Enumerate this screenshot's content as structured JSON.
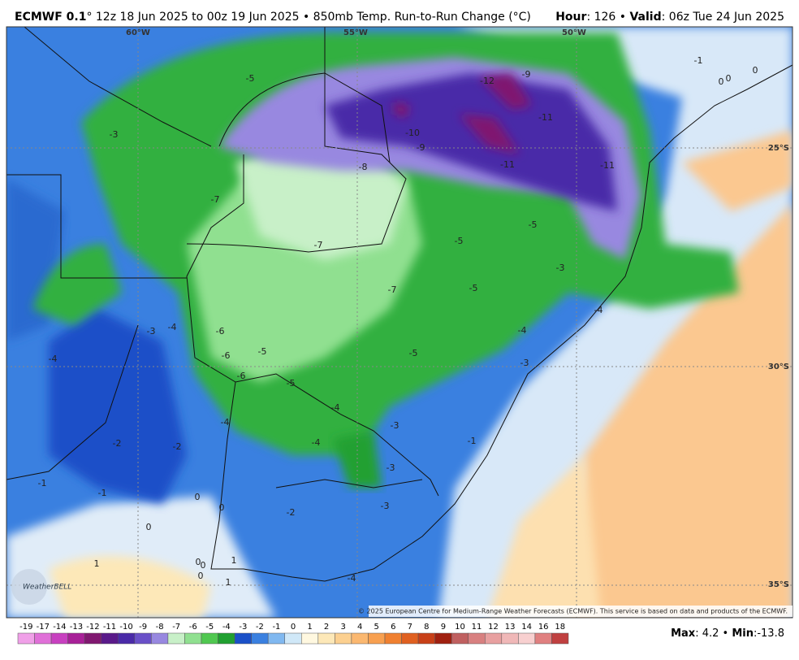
{
  "header": {
    "model": "ECMWF 0.1",
    "description": "° 12z 18 Jun 2025 to 00z 19 Jun 2025 • 850mb Temp. Run-to-Run Change (°C)",
    "hour_label": "Hour",
    "hour_rest": ": 126 • ",
    "valid_label": "Valid",
    "valid_rest": ": 06z Tue 24 Jun 2025"
  },
  "map": {
    "longitudes": [
      "60°W",
      "55°W",
      "50°W"
    ],
    "latitudes": [
      "25°S",
      "30°S",
      "35°S"
    ],
    "contour_labels": [
      "-1",
      "0",
      "0",
      "0",
      "-12",
      "-9",
      "-5",
      "-3",
      "-10",
      "-9",
      "-11",
      "-11",
      "-11",
      "-8",
      "-7",
      "-5",
      "-5",
      "-7",
      "-3",
      "-7",
      "-5",
      "-4",
      "-3",
      "-4",
      "-6",
      "-4",
      "-6",
      "-5",
      "-4",
      "-5",
      "-3",
      "-6",
      "-5",
      "-4",
      "-4",
      "-3",
      "-4",
      "-2",
      "-2",
      "-1",
      "-3",
      "-1",
      "-1",
      "0",
      "0",
      "-3",
      "-2",
      "0",
      "1",
      "0",
      "0",
      "1",
      "0",
      "1",
      "-4"
    ],
    "logo": "WeatherBELL",
    "copyright": "© 2025 European Centre for Medium-Range Weather Forecasts (ECMWF). This service is based on data and products of the ECMWF."
  },
  "colorbar": [
    {
      "label": "-19",
      "color": "#f0a0e8"
    },
    {
      "label": "-17",
      "color": "#e070d8"
    },
    {
      "label": "-14",
      "color": "#c840c0"
    },
    {
      "label": "-13",
      "color": "#a82098"
    },
    {
      "label": "-12",
      "color": "#801870"
    },
    {
      "label": "-11",
      "color": "#5a1a8a"
    },
    {
      "label": "-10",
      "color": "#4a2aa8"
    },
    {
      "label": "-9",
      "color": "#6a50c8"
    },
    {
      "label": "-8",
      "color": "#9888e0"
    },
    {
      "label": "-7",
      "color": "#c8f0c8"
    },
    {
      "label": "-6",
      "color": "#90e090"
    },
    {
      "label": "-5",
      "color": "#50c850"
    },
    {
      "label": "-4",
      "color": "#20a030"
    },
    {
      "label": "-3",
      "color": "#1a50c8"
    },
    {
      "label": "-2",
      "color": "#3a80e0"
    },
    {
      "label": "-1",
      "color": "#80b8f0"
    },
    {
      "label": "0",
      "color": "#d0e8f8"
    },
    {
      "label": "1",
      "color": "#fff8e0"
    },
    {
      "label": "2",
      "color": "#fde8b8"
    },
    {
      "label": "3",
      "color": "#fcd090"
    },
    {
      "label": "4",
      "color": "#fbb870"
    },
    {
      "label": "5",
      "color": "#f8a050"
    },
    {
      "label": "6",
      "color": "#f08030"
    },
    {
      "label": "7",
      "color": "#e06020"
    },
    {
      "label": "8",
      "color": "#c84018"
    },
    {
      "label": "9",
      "color": "#a02010"
    },
    {
      "label": "10",
      "color": "#c06060"
    },
    {
      "label": "11",
      "color": "#d88080"
    },
    {
      "label": "12",
      "color": "#e8a0a0"
    },
    {
      "label": "13",
      "color": "#f0b8b8"
    },
    {
      "label": "14",
      "color": "#f8d0d0"
    },
    {
      "label": "16",
      "color": "#e08080"
    },
    {
      "label": "18",
      "color": "#c04040"
    }
  ],
  "stats": {
    "max_label": "Max",
    "max_rest": ": 4.2 • ",
    "min_label": "Min",
    "min_rest": ":-13.8"
  }
}
